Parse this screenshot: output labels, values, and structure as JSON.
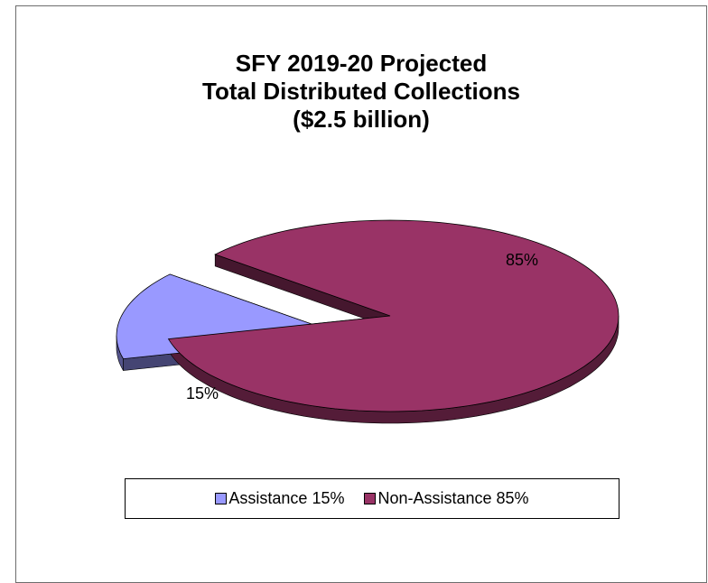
{
  "chart_data": {
    "type": "pie",
    "title_lines": [
      "SFY 2019-20 Projected",
      "Total Distributed Collections",
      "($2.5 billion)"
    ],
    "style": "3d-exploded",
    "slices": [
      {
        "label": "Assistance",
        "value": 15,
        "value_label": "15%",
        "legend": "Assistance 15%",
        "color": "#9999ff"
      },
      {
        "label": "Non-Assistance",
        "value": 85,
        "value_label": "85%",
        "legend": "Non-Assistance 85%",
        "color": "#993366"
      }
    ],
    "legend_position": "bottom"
  }
}
